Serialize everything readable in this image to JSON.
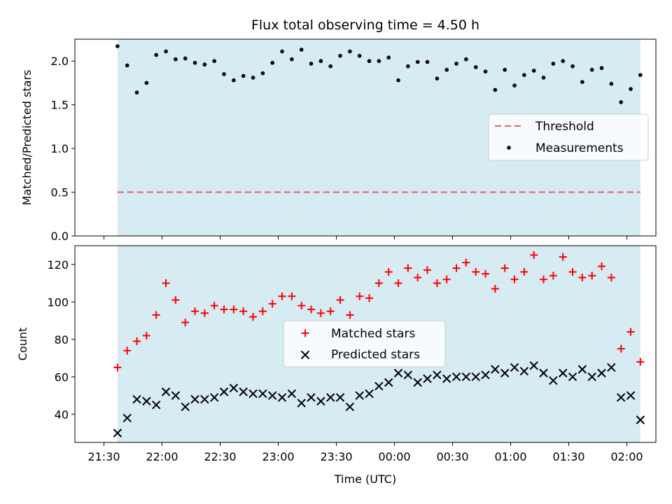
{
  "figure": {
    "title": "Flux total observing time = 4.50 h",
    "xlabel": "Time (UTC)",
    "x_tick_labels": [
      "21:30",
      "22:00",
      "22:30",
      "23:00",
      "23:30",
      "00:00",
      "00:30",
      "01:00",
      "01:30",
      "02:00"
    ]
  },
  "colors": {
    "shade": "#add8e6",
    "threshold": "#e06666",
    "measurement": "#000000",
    "matched": "#ff0000",
    "predicted": "#000000"
  },
  "chart_data": [
    {
      "type": "scatter",
      "panel": "top",
      "ylabel": "Matched/Predicted stars",
      "ylim": [
        0,
        2.25
      ],
      "y_ticks": [
        "0.0",
        "0.5",
        "1.0",
        "1.5",
        "2.0"
      ],
      "grid": false,
      "legend_placement": "center-right",
      "shaded_interval": [
        "21:37",
        "02:07"
      ],
      "threshold": {
        "name": "Threshold",
        "value": 0.5
      },
      "series": [
        {
          "name": "Measurements",
          "x": [
            "21:37",
            "21:42",
            "21:47",
            "21:52",
            "21:57",
            "22:02",
            "22:07",
            "22:12",
            "22:17",
            "22:22",
            "22:27",
            "22:32",
            "22:37",
            "22:42",
            "22:47",
            "22:52",
            "22:57",
            "23:02",
            "23:07",
            "23:12",
            "23:17",
            "23:22",
            "23:27",
            "23:32",
            "23:37",
            "23:42",
            "23:47",
            "23:52",
            "23:57",
            "00:02",
            "00:07",
            "00:12",
            "00:17",
            "00:22",
            "00:27",
            "00:32",
            "00:37",
            "00:42",
            "00:47",
            "00:52",
            "00:57",
            "01:02",
            "01:07",
            "01:12",
            "01:17",
            "01:22",
            "01:27",
            "01:32",
            "01:37",
            "01:42",
            "01:47",
            "01:52",
            "01:57",
            "02:02",
            "02:07"
          ],
          "y": [
            2.17,
            1.95,
            1.64,
            1.75,
            2.07,
            2.11,
            2.02,
            2.03,
            1.98,
            1.96,
            2.0,
            1.85,
            1.78,
            1.83,
            1.81,
            1.86,
            1.98,
            2.11,
            2.02,
            2.13,
            1.97,
            2.0,
            1.94,
            2.06,
            2.11,
            2.06,
            2.0,
            2.0,
            2.04,
            1.78,
            1.94,
            1.99,
            1.99,
            1.8,
            1.9,
            1.97,
            2.02,
            1.93,
            1.88,
            1.67,
            1.9,
            1.72,
            1.84,
            1.89,
            1.81,
            1.97,
            2.0,
            1.94,
            1.76,
            1.9,
            1.92,
            1.74,
            1.53,
            1.68,
            1.84
          ]
        }
      ]
    },
    {
      "type": "scatter",
      "panel": "bottom",
      "ylabel": "Count",
      "ylim": [
        25,
        130
      ],
      "y_ticks": [
        "40",
        "60",
        "80",
        "100",
        "120"
      ],
      "grid": false,
      "legend_placement": "center",
      "shaded_interval": [
        "21:37",
        "02:07"
      ],
      "series": [
        {
          "name": "Matched stars",
          "x": [
            "21:37",
            "21:42",
            "21:47",
            "21:52",
            "21:57",
            "22:02",
            "22:07",
            "22:12",
            "22:17",
            "22:22",
            "22:27",
            "22:32",
            "22:37",
            "22:42",
            "22:47",
            "22:52",
            "22:57",
            "23:02",
            "23:07",
            "23:12",
            "23:17",
            "23:22",
            "23:27",
            "23:32",
            "23:37",
            "23:42",
            "23:47",
            "23:52",
            "23:57",
            "00:02",
            "00:07",
            "00:12",
            "00:17",
            "00:22",
            "00:27",
            "00:32",
            "00:37",
            "00:42",
            "00:47",
            "00:52",
            "00:57",
            "01:02",
            "01:07",
            "01:12",
            "01:17",
            "01:22",
            "01:27",
            "01:32",
            "01:37",
            "01:42",
            "01:47",
            "01:52",
            "01:57",
            "02:02",
            "02:07"
          ],
          "y": [
            65,
            74,
            79,
            82,
            93,
            110,
            101,
            89,
            95,
            94,
            98,
            96,
            96,
            95,
            92,
            95,
            99,
            103,
            103,
            98,
            96,
            94,
            95,
            101,
            93,
            103,
            102,
            110,
            116,
            110,
            118,
            113,
            117,
            110,
            112,
            118,
            121,
            116,
            115,
            107,
            118,
            112,
            116,
            125,
            112,
            114,
            124,
            116,
            113,
            114,
            119,
            113,
            75,
            84,
            68
          ]
        },
        {
          "name": "Predicted stars",
          "x": [
            "21:37",
            "21:42",
            "21:47",
            "21:52",
            "21:57",
            "22:02",
            "22:07",
            "22:12",
            "22:17",
            "22:22",
            "22:27",
            "22:32",
            "22:37",
            "22:42",
            "22:47",
            "22:52",
            "22:57",
            "23:02",
            "23:07",
            "23:12",
            "23:17",
            "23:22",
            "23:27",
            "23:32",
            "23:37",
            "23:42",
            "23:47",
            "23:52",
            "23:57",
            "00:02",
            "00:07",
            "00:12",
            "00:17",
            "00:22",
            "00:27",
            "00:32",
            "00:37",
            "00:42",
            "00:47",
            "00:52",
            "00:57",
            "01:02",
            "01:07",
            "01:12",
            "01:17",
            "01:22",
            "01:27",
            "01:32",
            "01:37",
            "01:42",
            "01:47",
            "01:52",
            "01:57",
            "02:02",
            "02:07"
          ],
          "y": [
            30,
            38,
            48,
            47,
            45,
            52,
            50,
            44,
            48,
            48,
            49,
            52,
            54,
            52,
            51,
            51,
            50,
            49,
            51,
            46,
            49,
            47,
            49,
            49,
            44,
            50,
            51,
            55,
            57,
            62,
            61,
            57,
            59,
            61,
            59,
            60,
            60,
            60,
            61,
            64,
            62,
            65,
            63,
            66,
            62,
            58,
            62,
            60,
            64,
            60,
            62,
            65,
            49,
            50,
            37
          ]
        }
      ]
    }
  ]
}
